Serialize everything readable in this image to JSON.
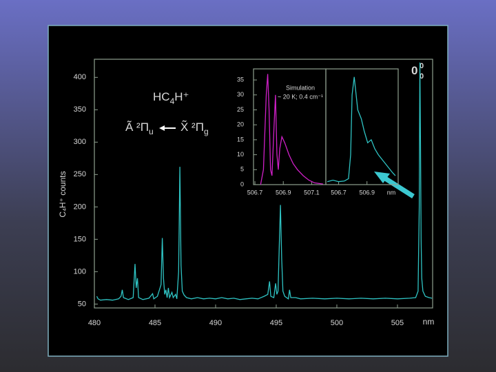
{
  "chart_data": [
    {
      "type": "line",
      "color": "#2fc4c4",
      "y_label": "C₄H⁺ counts",
      "x_label": "nm",
      "annotations": [
        {
          "text": "HC",
          "sub": "4",
          "tail": "H⁺"
        },
        {
          "text": "Ã ²Π",
          "sub": "u"
        },
        {
          "text": "X̃ ²Π",
          "sub": "g"
        },
        {
          "text": "0",
          "sup": "0",
          "sub": "0"
        }
      ],
      "xlim": [
        480,
        507.9
      ],
      "ylim": [
        44,
        428
      ],
      "xticks": [
        480,
        485,
        490,
        495,
        500,
        505
      ],
      "yticks": [
        50,
        100,
        150,
        200,
        250,
        300,
        350,
        400
      ],
      "x": [
        480.2,
        480.3,
        480.5,
        481.0,
        481.5,
        482.0,
        482.2,
        482.3,
        482.4,
        482.8,
        483.2,
        483.35,
        483.45,
        483.55,
        483.65,
        484.0,
        484.5,
        484.8,
        484.9,
        485.2,
        485.5,
        485.6,
        485.7,
        485.8,
        485.9,
        486.0,
        486.1,
        486.2,
        486.4,
        486.5,
        486.7,
        486.8,
        486.95,
        487.05,
        487.15,
        487.25,
        487.4,
        487.6,
        488.0,
        488.5,
        489.0,
        489.5,
        490.0,
        490.5,
        491.0,
        491.5,
        492.0,
        492.5,
        493.0,
        493.5,
        494.0,
        494.3,
        494.45,
        494.55,
        494.8,
        494.95,
        495.05,
        495.15,
        495.25,
        495.35,
        495.45,
        495.55,
        495.7,
        496.0,
        496.1,
        496.2,
        496.6,
        497.0,
        498.0,
        499.0,
        500.0,
        501.0,
        502.0,
        503.0,
        504.0,
        505.0,
        506.0,
        506.5,
        506.7,
        506.8,
        506.85,
        506.9,
        506.95,
        507.0,
        507.1,
        507.3,
        507.6,
        507.85
      ],
      "values": [
        62,
        58,
        56,
        57,
        56,
        58,
        62,
        72,
        60,
        57,
        60,
        112,
        75,
        90,
        60,
        57,
        59,
        66,
        58,
        62,
        80,
        152,
        90,
        65,
        72,
        60,
        75,
        60,
        68,
        60,
        65,
        58,
        100,
        262,
        110,
        70,
        64,
        60,
        58,
        60,
        58,
        59,
        58,
        60,
        58,
        59,
        57,
        58,
        59,
        58,
        62,
        65,
        85,
        62,
        60,
        82,
        65,
        70,
        140,
        203,
        120,
        70,
        62,
        58,
        72,
        60,
        60,
        58,
        59,
        58,
        59,
        58,
        59,
        58,
        59,
        58,
        59,
        60,
        70,
        200,
        423,
        300,
        150,
        90,
        70,
        62,
        60,
        59
      ]
    },
    {
      "type": "line",
      "color": "#d020c8",
      "title": "Simulation",
      "subtitle": "~ 20 K; 0.4 cm⁻¹",
      "xlim": [
        506.69,
        507.2
      ],
      "ylim": [
        0,
        38.7
      ],
      "xticks": [
        506.7,
        506.9,
        507.1
      ],
      "yticks": [
        0,
        5,
        10,
        15,
        20,
        25,
        30,
        35
      ],
      "x": [
        506.74,
        506.76,
        506.78,
        506.79,
        506.8,
        506.81,
        506.82,
        506.835,
        506.845,
        506.855,
        506.865,
        506.875,
        506.89,
        506.91,
        506.94,
        506.97,
        507.0,
        507.04,
        507.08,
        507.12,
        507.18
      ],
      "values": [
        0,
        5,
        30,
        37,
        25,
        5,
        3,
        20,
        30,
        10,
        5,
        12,
        16,
        14,
        10,
        7,
        5,
        3,
        1.5,
        0.6,
        0.2
      ]
    },
    {
      "type": "line",
      "color": "#2fc4c4",
      "x_label": "nm",
      "xlim": [
        506.61,
        507.12
      ],
      "ylim": [
        0,
        38.7
      ],
      "xticks": [
        506.7,
        506.9
      ],
      "x": [
        506.62,
        506.66,
        506.7,
        506.74,
        506.77,
        506.785,
        506.795,
        506.81,
        506.835,
        506.86,
        506.88,
        506.905,
        506.93,
        506.955,
        506.98,
        507.03,
        507.08,
        507.1
      ],
      "values": [
        1,
        1.5,
        1,
        1.2,
        2,
        10,
        30,
        36,
        25,
        22,
        18,
        14,
        15,
        12,
        10,
        7,
        4,
        3
      ]
    }
  ]
}
